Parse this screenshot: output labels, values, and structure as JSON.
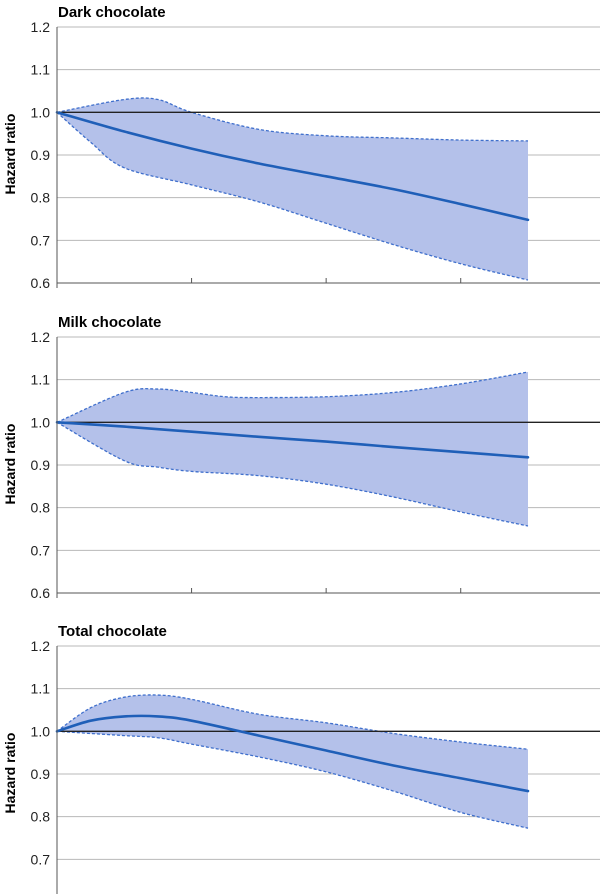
{
  "colors": {
    "band_fill": "#b4c1ea",
    "band_edge": "#3f6fcc",
    "line": "#1f5fb8",
    "reference": "#222222",
    "grid": "#b8b8b8",
    "axis": "#555555"
  },
  "chart_data": [
    {
      "type": "line",
      "title": "Dark chocolate",
      "ylabel": "Hazard ratio",
      "xlabel": "",
      "ylim": [
        0.6,
        1.2
      ],
      "yticks": [
        0.6,
        0.7,
        0.8,
        0.9,
        1.0,
        1.1,
        1.2
      ],
      "xlim": [
        0,
        7
      ],
      "xticks": [
        2,
        4,
        6
      ],
      "grid": true,
      "reference_y": 1.0,
      "series": [
        {
          "role": "estimate",
          "x": [
            0,
            1,
            2,
            3,
            4,
            5,
            6,
            7
          ],
          "y": [
            1.0,
            0.955,
            0.915,
            0.88,
            0.85,
            0.82,
            0.785,
            0.748
          ]
        },
        {
          "role": "ci_upper",
          "x": [
            0,
            1,
            1.5,
            2,
            3,
            4,
            5,
            6,
            7
          ],
          "y": [
            1.0,
            1.03,
            1.03,
            1.0,
            0.96,
            0.945,
            0.94,
            0.935,
            0.933
          ]
        },
        {
          "role": "ci_lower",
          "x": [
            0,
            0.5,
            1,
            2,
            3,
            4,
            5,
            6,
            7
          ],
          "y": [
            1.0,
            0.93,
            0.87,
            0.83,
            0.79,
            0.74,
            0.69,
            0.645,
            0.607
          ]
        }
      ]
    },
    {
      "type": "line",
      "title": "Milk chocolate",
      "ylabel": "Hazard ratio",
      "xlabel": "",
      "ylim": [
        0.6,
        1.2
      ],
      "yticks": [
        0.6,
        0.7,
        0.8,
        0.9,
        1.0,
        1.1,
        1.2
      ],
      "xlim": [
        0,
        7
      ],
      "xticks": [
        2,
        4,
        6
      ],
      "grid": true,
      "reference_y": 1.0,
      "series": [
        {
          "role": "estimate",
          "x": [
            0,
            1,
            2,
            3,
            4,
            5,
            6,
            7
          ],
          "y": [
            1.0,
            0.99,
            0.978,
            0.966,
            0.955,
            0.942,
            0.93,
            0.918
          ]
        },
        {
          "role": "ci_upper",
          "x": [
            0,
            1,
            1.5,
            2,
            2.5,
            3,
            4,
            5,
            6,
            7
          ],
          "y": [
            1.0,
            1.07,
            1.078,
            1.07,
            1.06,
            1.058,
            1.06,
            1.07,
            1.09,
            1.118
          ]
        },
        {
          "role": "ci_lower",
          "x": [
            0,
            1,
            1.5,
            2,
            3,
            4,
            5,
            6,
            7
          ],
          "y": [
            1.0,
            0.91,
            0.895,
            0.885,
            0.875,
            0.855,
            0.825,
            0.79,
            0.757
          ]
        }
      ]
    },
    {
      "type": "line",
      "title": "Total chocolate",
      "ylabel": "Hazard ratio",
      "xlabel": "",
      "ylim": [
        0.6,
        1.2
      ],
      "yticks": [
        0.7,
        0.8,
        0.9,
        1.0,
        1.1,
        1.2
      ],
      "xlim": [
        0,
        7
      ],
      "xticks": [
        2,
        4,
        6
      ],
      "grid": true,
      "reference_y": 1.0,
      "series": [
        {
          "role": "estimate",
          "x": [
            0,
            0.5,
            1,
            1.5,
            2,
            3,
            4,
            5,
            6,
            7
          ],
          "y": [
            1.0,
            1.025,
            1.035,
            1.035,
            1.025,
            0.99,
            0.955,
            0.92,
            0.89,
            0.86
          ]
        },
        {
          "role": "ci_upper",
          "x": [
            0,
            0.5,
            1,
            1.5,
            2,
            3,
            4,
            5,
            6,
            7
          ],
          "y": [
            1.0,
            1.055,
            1.08,
            1.085,
            1.075,
            1.04,
            1.02,
            0.995,
            0.975,
            0.958
          ]
        },
        {
          "role": "ci_lower",
          "x": [
            0,
            1,
            1.5,
            2,
            3,
            4,
            5,
            6,
            7
          ],
          "y": [
            1.0,
            0.99,
            0.985,
            0.97,
            0.94,
            0.905,
            0.86,
            0.81,
            0.773
          ]
        }
      ]
    }
  ]
}
